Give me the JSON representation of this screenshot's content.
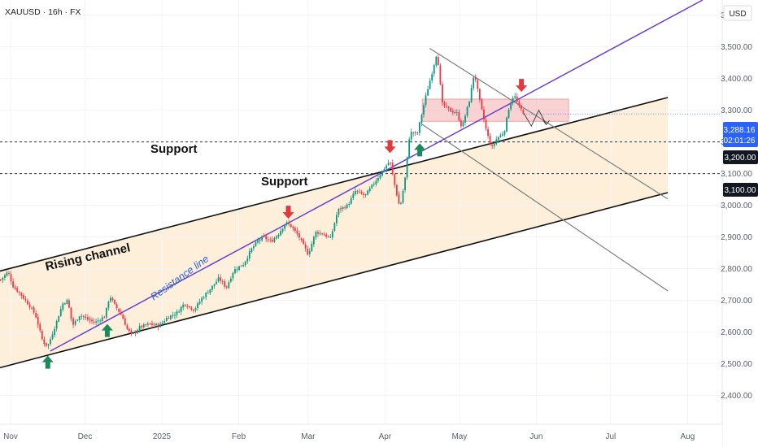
{
  "header": {
    "symbol": "XAUUSD · 16h · FX",
    "currency": "USD"
  },
  "chart_data": {
    "type": "candlestick",
    "x_ticks": [
      "Nov",
      "Dec",
      "2025",
      "Feb",
      "Mar",
      "Apr",
      "May",
      "Jun",
      "Jul",
      "Aug"
    ],
    "y_ticks": [
      "3,600.00",
      "3,500.00",
      "3,400.00",
      "3,300.00",
      "3,200.00",
      "3,100.00",
      "3,000.00",
      "2,900.00",
      "2,800.00",
      "2,700.00",
      "2,600.00",
      "2,500.00",
      "2,400.00"
    ],
    "ylim": [
      2380,
      3640
    ],
    "price_path": [
      [
        "2024-10-28",
        2765
      ],
      [
        "2024-10-31",
        2790
      ],
      [
        "2024-11-02",
        2745
      ],
      [
        "2024-11-05",
        2720
      ],
      [
        "2024-11-08",
        2690
      ],
      [
        "2024-11-11",
        2655
      ],
      [
        "2024-11-14",
        2570
      ],
      [
        "2024-11-16",
        2555
      ],
      [
        "2024-11-19",
        2620
      ],
      [
        "2024-11-22",
        2690
      ],
      [
        "2024-11-24",
        2700
      ],
      [
        "2024-11-26",
        2620
      ],
      [
        "2024-11-29",
        2655
      ],
      [
        "2024-12-02",
        2640
      ],
      [
        "2024-12-05",
        2630
      ],
      [
        "2024-12-07",
        2640
      ],
      [
        "2024-12-09",
        2650
      ],
      [
        "2024-12-11",
        2715
      ],
      [
        "2024-12-13",
        2685
      ],
      [
        "2024-12-16",
        2650
      ],
      [
        "2024-12-18",
        2610
      ],
      [
        "2024-12-20",
        2590
      ],
      [
        "2024-12-23",
        2615
      ],
      [
        "2024-12-27",
        2625
      ],
      [
        "2024-12-31",
        2620
      ],
      [
        "2025-01-03",
        2645
      ],
      [
        "2025-01-07",
        2660
      ],
      [
        "2025-01-10",
        2690
      ],
      [
        "2025-01-14",
        2670
      ],
      [
        "2025-01-17",
        2705
      ],
      [
        "2025-01-21",
        2740
      ],
      [
        "2025-01-24",
        2770
      ],
      [
        "2025-01-27",
        2740
      ],
      [
        "2025-01-30",
        2795
      ],
      [
        "2025-02-03",
        2815
      ],
      [
        "2025-02-06",
        2860
      ],
      [
        "2025-02-09",
        2890
      ],
      [
        "2025-02-11",
        2900
      ],
      [
        "2025-02-14",
        2885
      ],
      [
        "2025-02-17",
        2910
      ],
      [
        "2025-02-20",
        2945
      ],
      [
        "2025-02-22",
        2935
      ],
      [
        "2025-02-25",
        2905
      ],
      [
        "2025-02-28",
        2860
      ],
      [
        "2025-03-01",
        2845
      ],
      [
        "2025-03-04",
        2915
      ],
      [
        "2025-03-07",
        2910
      ],
      [
        "2025-03-10",
        2895
      ],
      [
        "2025-03-13",
        2985
      ],
      [
        "2025-03-17",
        3000
      ],
      [
        "2025-03-20",
        3045
      ],
      [
        "2025-03-24",
        3030
      ],
      [
        "2025-03-28",
        3075
      ],
      [
        "2025-04-01",
        3120
      ],
      [
        "2025-04-03",
        3140
      ],
      [
        "2025-04-05",
        3060
      ],
      [
        "2025-04-07",
        2990
      ],
      [
        "2025-04-09",
        3080
      ],
      [
        "2025-04-11",
        3230
      ],
      [
        "2025-04-14",
        3225
      ],
      [
        "2025-04-17",
        3330
      ],
      [
        "2025-04-20",
        3420
      ],
      [
        "2025-04-22",
        3485
      ],
      [
        "2025-04-24",
        3320
      ],
      [
        "2025-04-27",
        3300
      ],
      [
        "2025-04-30",
        3290
      ],
      [
        "2025-05-02",
        3245
      ],
      [
        "2025-05-05",
        3330
      ],
      [
        "2025-05-07",
        3420
      ],
      [
        "2025-05-09",
        3335
      ],
      [
        "2025-05-12",
        3230
      ],
      [
        "2025-05-14",
        3180
      ],
      [
        "2025-05-16",
        3210
      ],
      [
        "2025-05-19",
        3230
      ],
      [
        "2025-05-21",
        3310
      ],
      [
        "2025-05-23",
        3350
      ],
      [
        "2025-05-25",
        3310
      ],
      [
        "2025-05-27",
        3290
      ]
    ],
    "lines": {
      "rising_channel_upper": [
        [
          "2024-10-24",
          2785
        ],
        [
          "2025-07-24",
          3340
        ]
      ],
      "rising_channel_lower": [
        [
          "2024-10-24",
          2480
        ],
        [
          "2025-07-24",
          3040
        ]
      ],
      "resistance_line": [
        [
          "2024-11-17",
          2540
        ],
        [
          "2025-05-26",
          3340
        ]
      ],
      "descending_upper": [
        [
          "2025-04-19",
          3495
        ],
        [
          "2025-07-24",
          3020
        ]
      ],
      "descending_lower": [
        [
          "2025-04-16",
          3255
        ],
        [
          "2025-07-24",
          2730
        ]
      ],
      "support_levels": [
        3200,
        3100
      ]
    },
    "resistance_zone": {
      "x": [
        "2025-04-16",
        "2025-06-14"
      ],
      "y": [
        3265,
        3335
      ]
    },
    "projection": [
      [
        "2025-05-27",
        3290
      ],
      [
        "2025-05-30",
        3250
      ],
      [
        "2025-06-02",
        3300
      ],
      [
        "2025-06-05",
        3255
      ]
    ],
    "markers": {
      "down": [
        [
          "2025-02-21",
          2968
        ],
        [
          "2025-04-03",
          3175
        ],
        [
          "2025-05-26",
          3368
        ]
      ],
      "up": [
        [
          "2024-11-16",
          2505
        ],
        [
          "2024-12-10",
          2605
        ],
        [
          "2025-04-15",
          3175
        ]
      ]
    },
    "price_labels": {
      "current": "3,288.16",
      "countdown": "02:01:26",
      "level_1": "3,200.00",
      "level_2": "3,100.00"
    },
    "annotations": {
      "support_1": "Support",
      "support_2": "Support",
      "channel": "Rising channel",
      "resistance": "Resistance line"
    },
    "colors": {
      "up": "#089981",
      "down": "#f23645",
      "fill": "#fdecd4",
      "resistance_line": "#6c3fd1",
      "resistance_text": "#2962c9",
      "channel": "#111111",
      "descending": "#7d7d7d",
      "zone": "#f5b5b5",
      "marker_up": "#1b8a5a",
      "marker_down": "#e0393e",
      "current_price": "#2962ff"
    }
  }
}
